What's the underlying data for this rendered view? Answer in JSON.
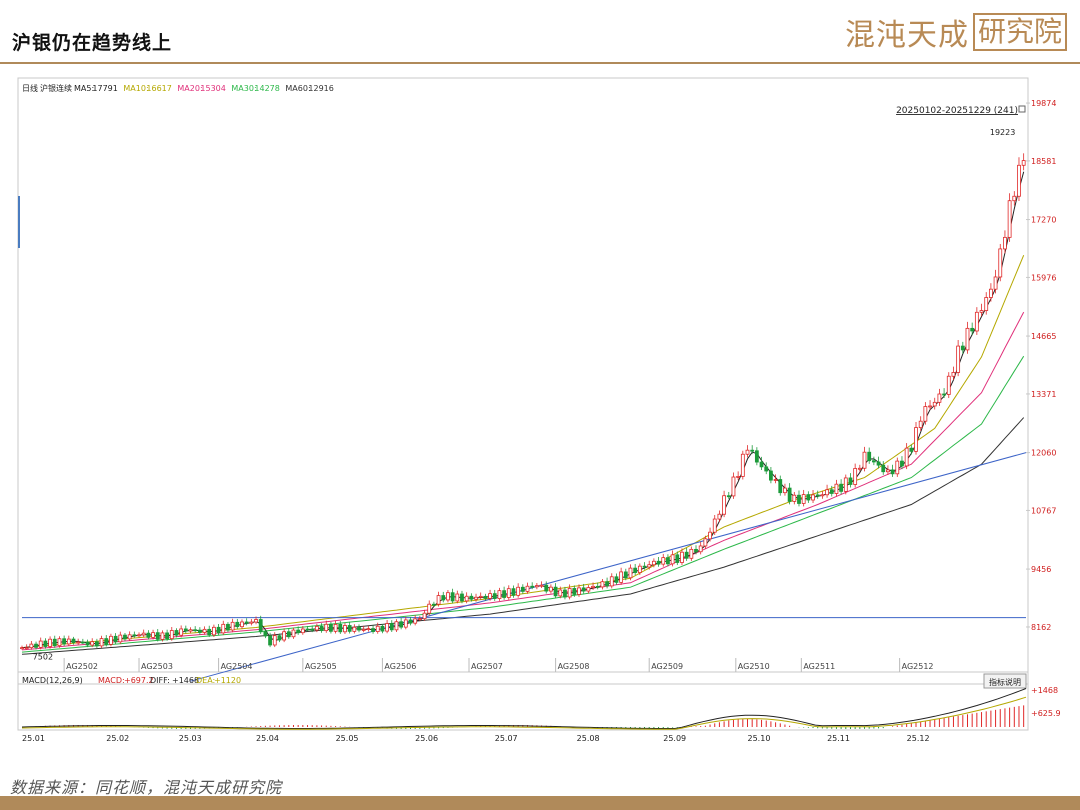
{
  "header": {
    "title": "沪银仍在趋势线上",
    "logo_text": "混沌天成",
    "logo_box": "研究院"
  },
  "footer": {
    "source": "数据来源：同花顺，混沌天成研究院"
  },
  "chart_data": {
    "type": "candlestick",
    "period_label": "日线",
    "instrument": "沪银连续",
    "ma_legend": [
      {
        "name": "MA5",
        "value": "17791",
        "color": "#222222"
      },
      {
        "name": "MA10",
        "value": "16617",
        "color": "#b5a800"
      },
      {
        "name": "MA20",
        "value": "15304",
        "color": "#e0307a"
      },
      {
        "name": "MA30",
        "value": "14278",
        "color": "#2db84a"
      },
      {
        "name": "MA60",
        "value": "12916",
        "color": "#333333"
      }
    ],
    "range_label": "20250102-20251229 (241)",
    "high_label": "19223",
    "low_label": "7502",
    "y_ticks": [
      19874,
      18581,
      17270,
      15976,
      14665,
      13371,
      12060,
      10767,
      9456,
      8162
    ],
    "ylim": [
      7200,
      20300
    ],
    "contract_labels": [
      "AG2502",
      "AG2503",
      "AG2504",
      "AG2505",
      "AG2506",
      "AG2507",
      "AG2508",
      "AG2509",
      "AG2510",
      "AG2511",
      "AG2512"
    ],
    "x_labels": [
      "25.01",
      "25.02",
      "25.03",
      "25.04",
      "25.05",
      "25.06",
      "25.07",
      "25.08",
      "25.09",
      "25.10",
      "25.11",
      "25.12"
    ],
    "close_path": [
      [
        0,
        7700
      ],
      [
        10,
        7800
      ],
      [
        20,
        7850
      ],
      [
        30,
        7780
      ],
      [
        40,
        7900
      ],
      [
        50,
        8000
      ],
      [
        60,
        7950
      ],
      [
        70,
        8100
      ],
      [
        80,
        8050
      ],
      [
        90,
        8200
      ],
      [
        100,
        8300
      ],
      [
        105,
        7800
      ],
      [
        110,
        7950
      ],
      [
        120,
        8100
      ],
      [
        130,
        8150
      ],
      [
        140,
        8120
      ],
      [
        150,
        8100
      ],
      [
        160,
        8200
      ],
      [
        170,
        8350
      ],
      [
        175,
        8700
      ],
      [
        180,
        8850
      ],
      [
        190,
        8800
      ],
      [
        200,
        8850
      ],
      [
        210,
        8950
      ],
      [
        220,
        9100
      ],
      [
        225,
        9000
      ],
      [
        230,
        8900
      ],
      [
        240,
        9000
      ],
      [
        250,
        9150
      ],
      [
        260,
        9400
      ],
      [
        270,
        9600
      ],
      [
        280,
        9700
      ],
      [
        285,
        9800
      ],
      [
        290,
        9950
      ],
      [
        295,
        10400
      ],
      [
        300,
        11000
      ],
      [
        305,
        11500
      ],
      [
        310,
        12200
      ],
      [
        315,
        11800
      ],
      [
        320,
        11500
      ],
      [
        325,
        11200
      ],
      [
        330,
        11000
      ],
      [
        340,
        11100
      ],
      [
        350,
        11300
      ],
      [
        355,
        11500
      ],
      [
        360,
        12000
      ],
      [
        365,
        11800
      ],
      [
        370,
        11600
      ],
      [
        375,
        11800
      ],
      [
        380,
        12200
      ],
      [
        385,
        13000
      ],
      [
        390,
        13200
      ],
      [
        395,
        13500
      ],
      [
        400,
        14300
      ],
      [
        405,
        14800
      ],
      [
        410,
        15300
      ],
      [
        415,
        15800
      ],
      [
        420,
        17000
      ],
      [
        423,
        17800
      ],
      [
        426,
        18300
      ],
      [
        429,
        19000
      ]
    ],
    "moving_averages": {
      "MA10": [
        [
          0,
          7700
        ],
        [
          100,
          8150
        ],
        [
          200,
          8800
        ],
        [
          260,
          9250
        ],
        [
          300,
          10400
        ],
        [
          330,
          11000
        ],
        [
          360,
          11500
        ],
        [
          390,
          12600
        ],
        [
          410,
          14200
        ],
        [
          429,
          16600
        ]
      ],
      "MA20": [
        [
          0,
          7650
        ],
        [
          100,
          8100
        ],
        [
          200,
          8700
        ],
        [
          260,
          9150
        ],
        [
          300,
          10100
        ],
        [
          340,
          10900
        ],
        [
          380,
          11800
        ],
        [
          410,
          13400
        ],
        [
          429,
          15300
        ]
      ],
      "MA30": [
        [
          0,
          7600
        ],
        [
          100,
          8050
        ],
        [
          200,
          8600
        ],
        [
          260,
          9050
        ],
        [
          300,
          9900
        ],
        [
          340,
          10700
        ],
        [
          380,
          11500
        ],
        [
          410,
          12700
        ],
        [
          429,
          14300
        ]
      ],
      "MA60": [
        [
          0,
          7550
        ],
        [
          100,
          7950
        ],
        [
          200,
          8450
        ],
        [
          260,
          8900
        ],
        [
          300,
          9500
        ],
        [
          340,
          10200
        ],
        [
          380,
          10900
        ],
        [
          410,
          11800
        ],
        [
          429,
          12900
        ]
      ]
    },
    "trend_lines": [
      {
        "from": [
          72,
          6950
        ],
        "to": [
          429,
          12060
        ]
      },
      {
        "from": [
          0,
          8370
        ],
        "to": [
          429,
          8370
        ]
      }
    ],
    "macd": {
      "label": "MACD(12,26,9)",
      "macd_label": "MACD:",
      "macd_value": "+697.2",
      "diff_label": "DIFF:",
      "diff_value": "+1468",
      "dea_label": "DEA:",
      "dea_value": "+1120",
      "axis_ticks": [
        "+1468",
        "+625.9"
      ],
      "button": "指标说明"
    }
  }
}
